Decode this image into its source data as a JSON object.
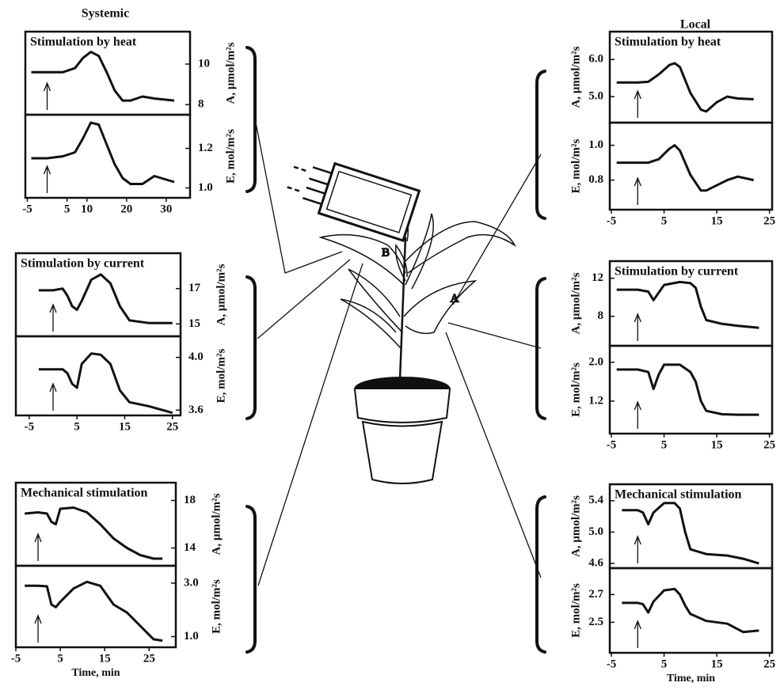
{
  "headings": [
    "Systemic",
    "Local"
  ],
  "plant_labels": [
    "B",
    "A"
  ],
  "chart_data": [
    {
      "type": "line",
      "title": "Stimulation by heat",
      "ylabel": "A, μmol/m²s",
      "x": [
        -4,
        0,
        4,
        7,
        9,
        11,
        13,
        15,
        17,
        19,
        21,
        24,
        27,
        32
      ],
      "values": [
        9.6,
        9.6,
        9.6,
        9.8,
        10.3,
        10.6,
        10.4,
        9.6,
        8.7,
        8.2,
        8.2,
        8.4,
        8.3,
        8.2
      ],
      "xlim": [
        -5.5,
        36
      ],
      "ylim": [
        7.5,
        11.6
      ],
      "yticks": [
        8,
        10
      ]
    },
    {
      "type": "line",
      "ylabel": "E, mol/m²s",
      "x": [
        -4,
        0,
        4,
        7,
        9,
        11,
        13,
        15,
        17,
        19,
        21,
        24,
        27,
        32
      ],
      "values": [
        1.15,
        1.15,
        1.16,
        1.18,
        1.25,
        1.33,
        1.32,
        1.22,
        1.12,
        1.05,
        1.02,
        1.02,
        1.06,
        1.03
      ],
      "xlim": [
        -5.5,
        36
      ],
      "ylim": [
        0.95,
        1.37
      ],
      "yticks": [
        {
          "value": 1,
          "label": "1.0"
        },
        1.2
      ],
      "xticks": [
        -5,
        5,
        10,
        20,
        30
      ]
    },
    {
      "type": "line",
      "title": "Stimulation by current",
      "ylabel": "A, μmol/m²s",
      "x": [
        -3,
        0,
        2,
        3,
        4,
        5,
        6,
        8,
        10,
        12,
        14,
        16,
        20,
        25
      ],
      "values": [
        16.9,
        16.9,
        17.0,
        16.6,
        16.0,
        15.8,
        16.3,
        17.5,
        17.8,
        17.3,
        16.0,
        15.2,
        15.05,
        15.05
      ],
      "xlim": [
        -7.8,
        26.7
      ],
      "ylim": [
        14.3,
        19
      ],
      "yticks": [
        15,
        17
      ]
    },
    {
      "type": "line",
      "ylabel": "E, mol/m²s",
      "x": [
        -3,
        0,
        2,
        3,
        4,
        5,
        6,
        8,
        10,
        12,
        14,
        16,
        20,
        25
      ],
      "values": [
        3.91,
        3.91,
        3.91,
        3.88,
        3.8,
        3.77,
        3.95,
        4.03,
        4.02,
        3.95,
        3.75,
        3.66,
        3.63,
        3.58
      ],
      "xlim": [
        -7.8,
        26.7
      ],
      "ylim": [
        3.56,
        4.16
      ],
      "yticks": [
        3.6,
        {
          "value": 4,
          "label": "4.0"
        }
      ],
      "xticks": [
        -5,
        5,
        15,
        25
      ]
    },
    {
      "type": "line",
      "title": "Mechanical stimulation",
      "ylabel": "A, μmol/m²s",
      "x": [
        -3,
        0,
        2,
        3,
        4,
        5,
        8,
        11,
        14,
        17,
        20,
        23,
        26,
        28
      ],
      "values": [
        16.9,
        17.0,
        16.9,
        16.2,
        16.0,
        17.3,
        17.4,
        17.0,
        16.0,
        14.8,
        14.0,
        13.4,
        13.1,
        13.1
      ],
      "xlim": [
        -5,
        31
      ],
      "ylim": [
        12.5,
        19.5
      ],
      "yticks": [
        14,
        18
      ]
    },
    {
      "type": "line",
      "ylabel": "E, mol/m²s",
      "x": [
        -3,
        0,
        2,
        3,
        4,
        5,
        8,
        11,
        14,
        17,
        20,
        23,
        26,
        28
      ],
      "values": [
        2.9,
        2.9,
        2.88,
        2.2,
        2.1,
        2.3,
        2.8,
        3.05,
        2.9,
        2.2,
        1.9,
        1.4,
        0.9,
        0.85
      ],
      "xlim": [
        -5,
        31
      ],
      "ylim": [
        0.6,
        3.65
      ],
      "yticks": [
        {
          "value": 1,
          "label": "1.0"
        },
        {
          "value": 3,
          "label": "3.0"
        }
      ],
      "xticks": [
        -5,
        5,
        15,
        25
      ],
      "xlabel": "Time, min"
    },
    {
      "type": "line",
      "title": "Stimulation by heat",
      "ylabel": "A, μmol/m²s",
      "x": [
        -4,
        0,
        2,
        4,
        6,
        7,
        8,
        10,
        12,
        13,
        15,
        17,
        19,
        22
      ],
      "values": [
        5.38,
        5.38,
        5.4,
        5.6,
        5.85,
        5.9,
        5.8,
        5.1,
        4.65,
        4.6,
        4.85,
        5.0,
        4.95,
        4.93
      ],
      "xlim": [
        -5.3,
        25.5
      ],
      "ylim": [
        4.3,
        6.75
      ],
      "yticks": [
        {
          "value": 5,
          "label": "5.0"
        },
        {
          "value": 6,
          "label": "6.0"
        }
      ]
    },
    {
      "type": "line",
      "ylabel": "E, mol/m²s",
      "x": [
        -4,
        0,
        2,
        4,
        6,
        7,
        8,
        10,
        12,
        13,
        15,
        17,
        19,
        22
      ],
      "values": [
        0.9,
        0.9,
        0.9,
        0.92,
        0.98,
        1.0,
        0.97,
        0.83,
        0.74,
        0.74,
        0.77,
        0.8,
        0.82,
        0.8
      ],
      "xlim": [
        -5.3,
        25.5
      ],
      "ylim": [
        0.63,
        1.13
      ],
      "yticks": [
        0.8,
        {
          "value": 1,
          "label": "1.0"
        }
      ],
      "xticks": [
        -5,
        5,
        15,
        25
      ]
    },
    {
      "type": "line",
      "title": "Stimulation by current",
      "ylabel": "A, μmol/m²s",
      "x": [
        -4,
        0,
        2,
        3,
        4,
        5,
        8,
        10,
        11,
        12,
        13,
        16,
        19,
        23
      ],
      "values": [
        10.8,
        10.8,
        10.6,
        9.7,
        10.5,
        11.3,
        11.6,
        11.5,
        11.0,
        9.0,
        7.6,
        7.2,
        7.0,
        6.8
      ],
      "xlim": [
        -5.3,
        25.5
      ],
      "ylim": [
        4.9,
        13.8
      ],
      "yticks": [
        8,
        12
      ]
    },
    {
      "type": "line",
      "ylabel": "E, mol/m²s",
      "x": [
        -4,
        0,
        2,
        3,
        4,
        5,
        8,
        10,
        11,
        12,
        13,
        16,
        19,
        23
      ],
      "values": [
        1.85,
        1.85,
        1.8,
        1.45,
        1.75,
        1.95,
        1.95,
        1.8,
        1.6,
        1.2,
        1.0,
        0.93,
        0.92,
        0.92
      ],
      "xlim": [
        -5.3,
        25.5
      ],
      "ylim": [
        0.53,
        2.34
      ],
      "yticks": [
        1.2,
        {
          "value": 2,
          "label": "2.0"
        }
      ],
      "xticks": [
        -5,
        5,
        15,
        25
      ]
    },
    {
      "type": "line",
      "title": "Mechanical stimulation",
      "ylabel": "A, μmol/m²s",
      "x": [
        -3,
        0,
        1,
        2,
        3,
        5,
        7,
        8,
        9,
        10,
        13,
        17,
        20,
        23
      ],
      "values": [
        5.28,
        5.28,
        5.25,
        5.1,
        5.25,
        5.37,
        5.37,
        5.3,
        5.0,
        4.78,
        4.72,
        4.7,
        4.66,
        4.6
      ],
      "xlim": [
        -5.3,
        25.5
      ],
      "ylim": [
        4.54,
        5.61
      ],
      "yticks": [
        4.6,
        {
          "value": 5,
          "label": "5.0"
        },
        5.4
      ]
    },
    {
      "type": "line",
      "ylabel": "E, mol/m²s",
      "x": [
        -3,
        0,
        1,
        2,
        3,
        5,
        7,
        8,
        9,
        10,
        13,
        17,
        20,
        23
      ],
      "values": [
        2.64,
        2.64,
        2.63,
        2.57,
        2.65,
        2.73,
        2.74,
        2.7,
        2.62,
        2.56,
        2.51,
        2.49,
        2.43,
        2.44
      ],
      "xlim": [
        -5.3,
        25.5
      ],
      "ylim": [
        2.28,
        2.89
      ],
      "yticks": [
        2.5,
        2.7
      ],
      "xticks": [
        -5,
        5,
        15,
        25
      ],
      "xlabel": "Time, min"
    }
  ]
}
